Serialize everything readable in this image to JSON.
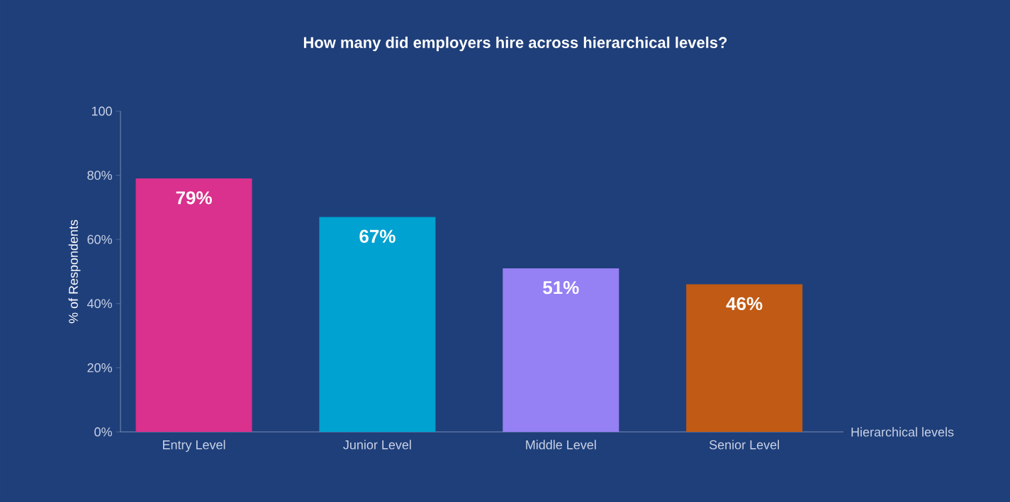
{
  "chart_data": {
    "type": "bar",
    "title": "How many did employers hire across hierarchical levels?",
    "xlabel": "Hierarchical levels",
    "ylabel": "% of Respondents",
    "categories": [
      "Entry Level",
      "Junior Level",
      "Middle Level",
      "Senior Level"
    ],
    "values": [
      79,
      67,
      51,
      46
    ],
    "value_labels": [
      "79%",
      "67%",
      "51%",
      "46%"
    ],
    "colors": [
      "#d9318d",
      "#00a2d1",
      "#9580f4",
      "#c05a14"
    ],
    "ylim": [
      0,
      100
    ],
    "yticks": [
      {
        "value": 0,
        "label": "0%"
      },
      {
        "value": 20,
        "label": "20%"
      },
      {
        "value": 40,
        "label": "40%"
      },
      {
        "value": 60,
        "label": "60%"
      },
      {
        "value": 80,
        "label": "80%"
      },
      100
    ],
    "grid": false
  }
}
